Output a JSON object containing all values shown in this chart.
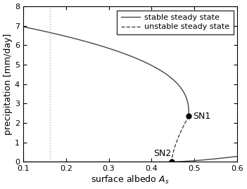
{
  "xlim": [
    0.1,
    0.6
  ],
  "ylim": [
    0,
    8
  ],
  "xlabel": "surface albedo A_s",
  "ylabel": "precipitation [mm/day]",
  "xticks": [
    0.1,
    0.2,
    0.3,
    0.4,
    0.5,
    0.6
  ],
  "yticks": [
    0,
    1,
    2,
    3,
    4,
    5,
    6,
    7,
    8
  ],
  "vline_x": 0.163,
  "vline_color": "#b0b0b0",
  "SN1": [
    0.487,
    2.35
  ],
  "SN2": [
    0.447,
    0.0
  ],
  "line_color": "#444444",
  "legend_stable": "stable steady state",
  "legend_unstable": "unstable steady state",
  "figsize": [
    3.51,
    2.69
  ],
  "dpi": 100
}
